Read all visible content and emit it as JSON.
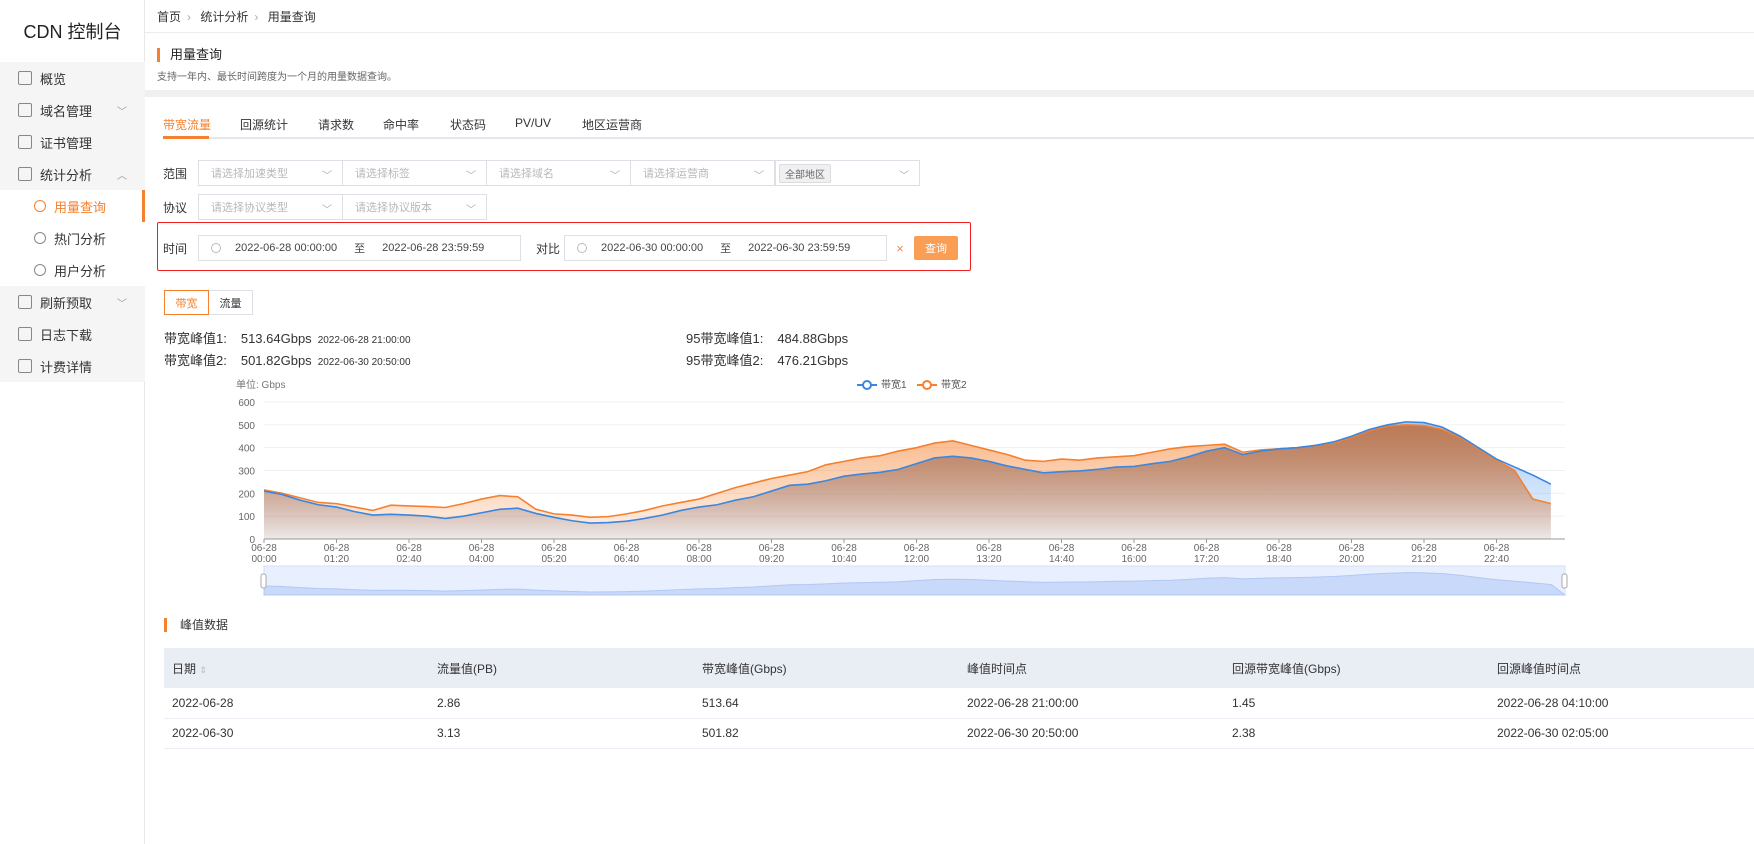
{
  "app": {
    "title": "CDN 控制台"
  },
  "sidebar": {
    "items": [
      {
        "label": "概览",
        "icon": "dashboard-icon",
        "level": 1
      },
      {
        "label": "域名管理",
        "icon": "globe-icon",
        "level": 1,
        "expandable": true
      },
      {
        "label": "证书管理",
        "icon": "certificate-icon",
        "level": 1
      },
      {
        "label": "统计分析",
        "icon": "chart-icon",
        "level": 1,
        "expanded": true
      },
      {
        "label": "用量查询",
        "icon": "usage-query-icon",
        "level": 2,
        "active": true
      },
      {
        "label": "热门分析",
        "icon": "user-hot-icon",
        "level": 2
      },
      {
        "label": "用户分析",
        "icon": "user-icon",
        "level": 2
      },
      {
        "label": "刷新预取",
        "icon": "refresh-icon",
        "level": 1,
        "expandable": true
      },
      {
        "label": "日志下载",
        "icon": "log-download-icon",
        "level": 1
      },
      {
        "label": "计费详情",
        "icon": "yen-icon",
        "level": 1
      }
    ]
  },
  "breadcrumb": [
    "首页",
    "统计分析",
    "用量查询"
  ],
  "page": {
    "title": "用量查询",
    "description": "支持一年内、最长时间跨度为一个月的用量数据查询。"
  },
  "tabs": [
    "带宽流量",
    "回源统计",
    "请求数",
    "命中率",
    "状态码",
    "PV/UV",
    "地区运营商"
  ],
  "active_tab": "带宽流量",
  "filters": {
    "scope_label": "范围",
    "scope": [
      "请选择加速类型",
      "请选择标签",
      "请选择域名",
      "请选择运营商"
    ],
    "region_tag": "全部地区",
    "protocol_label": "协议",
    "protocol": [
      "请选择协议类型",
      "请选择协议版本"
    ],
    "time_label": "时间",
    "time_start": "2022-06-28 00:00:00",
    "time_to": "至",
    "time_end": "2022-06-28 23:59:59",
    "compare_label": "对比",
    "compare_start": "2022-06-30 00:00:00",
    "compare_to": "至",
    "compare_end": "2022-06-30 23:59:59",
    "clear": "×",
    "query_button": "查询"
  },
  "toggle": {
    "options": [
      "带宽",
      "流量"
    ],
    "active": "带宽"
  },
  "stats": {
    "peak1_label": "带宽峰值1:",
    "peak1_value": "513.64Gbps",
    "peak1_time": "2022-06-28 21:00:00",
    "peak2_label": "带宽峰值2:",
    "peak2_value": "501.82Gbps",
    "peak2_time": "2022-06-30 20:50:00",
    "p95_1_label": "95带宽峰值1:",
    "p95_1_value": "484.88Gbps",
    "p95_2_label": "95带宽峰值2:",
    "p95_2_value": "476.21Gbps"
  },
  "colors": {
    "accent": "#f5812f",
    "series1": "#3a86e0",
    "series2": "#f5812f",
    "highlight_border": "#f02020"
  },
  "chart_data": {
    "type": "area",
    "unit_label": "单位: Gbps",
    "ylim": [
      0,
      600
    ],
    "yticks": [
      0,
      100,
      200,
      300,
      400,
      500,
      600
    ],
    "xtick_labels": [
      "06-28\n00:00",
      "06-28\n01:20",
      "06-28\n02:40",
      "06-28\n04:00",
      "06-28\n05:20",
      "06-28\n06:40",
      "06-28\n08:00",
      "06-28\n09:20",
      "06-28\n10:40",
      "06-28\n12:00",
      "06-28\n13:20",
      "06-28\n14:40",
      "06-28\n16:00",
      "06-28\n17:20",
      "06-28\n18:40",
      "06-28\n20:00",
      "06-28\n21:20",
      "06-28\n22:40"
    ],
    "grid": true,
    "legend": "top-center",
    "x": [
      "00:00",
      "00:20",
      "00:40",
      "01:00",
      "01:20",
      "01:40",
      "02:00",
      "02:20",
      "02:40",
      "03:00",
      "03:20",
      "03:40",
      "04:00",
      "04:20",
      "04:40",
      "05:00",
      "05:20",
      "05:40",
      "06:00",
      "06:20",
      "06:40",
      "07:00",
      "07:20",
      "07:40",
      "08:00",
      "08:20",
      "08:40",
      "09:00",
      "09:20",
      "09:40",
      "10:00",
      "10:20",
      "10:40",
      "11:00",
      "11:20",
      "11:40",
      "12:00",
      "12:20",
      "12:40",
      "13:00",
      "13:20",
      "13:40",
      "14:00",
      "14:20",
      "14:40",
      "15:00",
      "15:20",
      "15:40",
      "16:00",
      "16:20",
      "16:40",
      "17:00",
      "17:20",
      "17:40",
      "18:00",
      "18:20",
      "18:40",
      "19:00",
      "19:20",
      "19:40",
      "20:00",
      "20:20",
      "20:40",
      "21:00",
      "21:20",
      "21:40",
      "22:00",
      "22:20",
      "22:40",
      "23:00",
      "23:20",
      "23:40"
    ],
    "series": [
      {
        "name": "带宽1",
        "values": [
          210,
          195,
          170,
          150,
          140,
          120,
          105,
          108,
          105,
          100,
          90,
          100,
          115,
          130,
          135,
          112,
          95,
          80,
          70,
          72,
          78,
          90,
          105,
          125,
          140,
          150,
          170,
          185,
          210,
          235,
          240,
          255,
          275,
          285,
          292,
          305,
          330,
          355,
          362,
          355,
          340,
          320,
          305,
          290,
          295,
          298,
          305,
          315,
          318,
          330,
          340,
          360,
          385,
          400,
          370,
          385,
          395,
          400,
          410,
          425,
          450,
          480,
          500,
          513,
          510,
          490,
          450,
          400,
          350,
          315,
          280,
          240
        ]
      },
      {
        "name": "带宽2",
        "values": [
          215,
          200,
          180,
          160,
          155,
          140,
          125,
          148,
          145,
          142,
          138,
          155,
          175,
          190,
          185,
          130,
          110,
          105,
          95,
          98,
          110,
          125,
          145,
          160,
          175,
          200,
          225,
          245,
          265,
          280,
          295,
          325,
          340,
          355,
          365,
          385,
          400,
          420,
          430,
          410,
          390,
          370,
          345,
          340,
          350,
          345,
          355,
          360,
          365,
          380,
          395,
          405,
          410,
          415,
          380,
          390,
          395,
          400,
          410,
          420,
          445,
          475,
          495,
          500,
          497,
          480,
          445,
          395,
          345,
          300,
          175,
          155
        ]
      }
    ]
  },
  "peak_section": {
    "title": "峰值数据"
  },
  "table": {
    "columns": [
      "日期",
      "流量值(PB)",
      "带宽峰值(Gbps)",
      "峰值时间点",
      "回源带宽峰值(Gbps)",
      "回源峰值时间点"
    ],
    "rows": [
      [
        "2022-06-28",
        "2.86",
        "513.64",
        "2022-06-28 21:00:00",
        "1.45",
        "2022-06-28 04:10:00"
      ],
      [
        "2022-06-30",
        "3.13",
        "501.82",
        "2022-06-30 20:50:00",
        "2.38",
        "2022-06-30 02:05:00"
      ]
    ]
  }
}
